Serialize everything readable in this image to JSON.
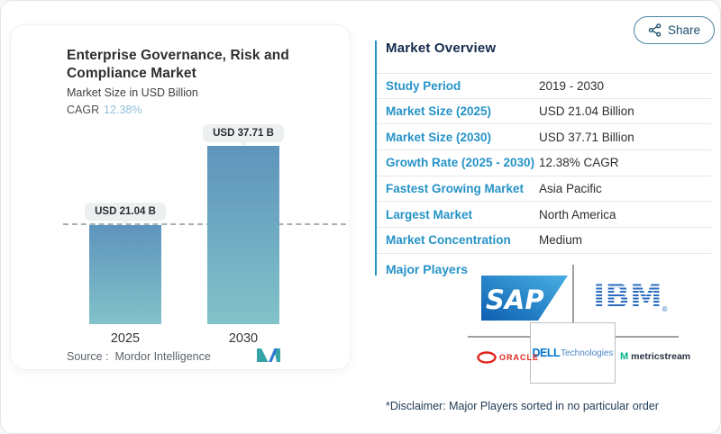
{
  "chart_card": {
    "title_line1": "Enterprise Governance, Risk and",
    "title_line2": "Compliance Market",
    "subtitle": "Market Size in USD Billion",
    "cagr_label": "CAGR",
    "cagr_value": "12.38%",
    "source_label": "Source :",
    "source_value": "Mordor Intelligence",
    "logo_name": "mordor-intelligence-logo"
  },
  "chart_data": {
    "type": "bar",
    "title": "Enterprise Governance, Risk and Compliance Market",
    "ylabel": "Market Size in USD Billion",
    "categories": [
      "2025",
      "2030"
    ],
    "values": [
      21.04,
      37.71
    ],
    "value_labels": [
      "USD 21.04 B",
      "USD 37.71 B"
    ],
    "unit": "USD Billion",
    "cagr": "12.38%",
    "reference_line_at": 21.04,
    "grid": false,
    "bar_gradient": [
      "#5e94bc",
      "#82c2c9"
    ],
    "dashed_line_color": "#a3b2b8"
  },
  "share_button": {
    "label": "Share"
  },
  "overview": {
    "heading": "Market Overview",
    "rows": [
      {
        "label": "Study Period",
        "value": "2019 - 2030"
      },
      {
        "label": "Market Size (2025)",
        "value": "USD 21.04 Billion"
      },
      {
        "label": "Market Size (2030)",
        "value": "USD 37.71 Billion"
      },
      {
        "label": "Growth Rate (2025 - 2030)",
        "value": "12.38% CAGR"
      },
      {
        "label": "Fastest Growing Market",
        "value": "Asia Pacific"
      },
      {
        "label": "Largest Market",
        "value": "North America"
      },
      {
        "label": "Market Concentration",
        "value": "Medium"
      }
    ],
    "label_color": "#2693c8",
    "heading_color": "#132a4d"
  },
  "players": {
    "section_label": "Major Players",
    "sap": "SAP",
    "ibm": "IBM",
    "ibm_reg": "®",
    "oracle": "ORACLE",
    "dell_word": "DELL",
    "dell_tech": "Technologies",
    "metricstream_icon": "M",
    "metricstream": "metricstream",
    "names": [
      "SAP",
      "IBM",
      "Oracle",
      "Dell Technologies",
      "MetricStream"
    ]
  },
  "disclaimer": "*Disclaimer: Major Players sorted in no particular order"
}
